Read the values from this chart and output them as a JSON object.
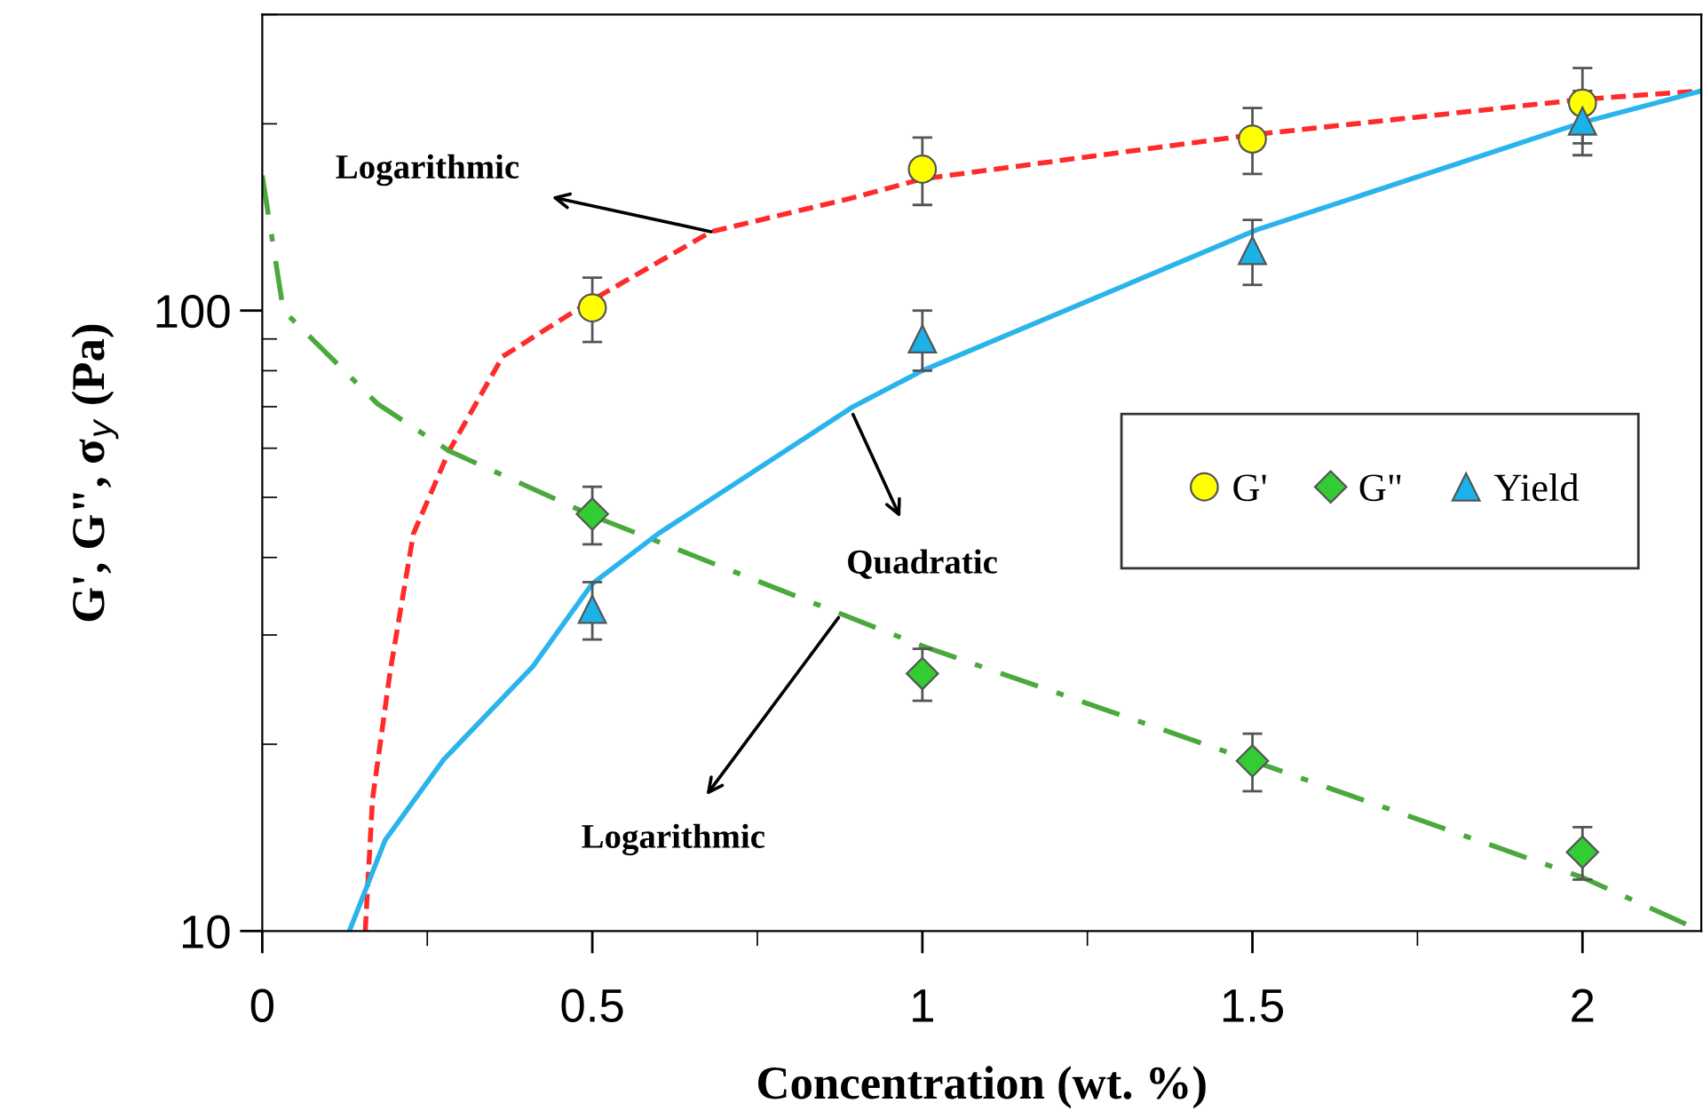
{
  "chart_data": {
    "type": "scatter",
    "xlabel": "Concentration (wt. %)",
    "ylabel": "G', G\", σ$_{y}$ (Pa)",
    "log": "y",
    "xlim": [
      0,
      2.18
    ],
    "xticks": [
      0,
      0.5,
      1,
      1.5,
      2
    ],
    "ylim": [
      10,
      300
    ],
    "yticks": [
      10,
      100
    ],
    "grid": false,
    "legend": "right",
    "series": [
      {
        "name": "G'",
        "marker": "circle",
        "color": "#ffff00",
        "x": [
          0.5,
          1,
          1.5,
          2
        ],
        "values": [
          101,
          169,
          189,
          216
        ],
        "errors": [
          12,
          21,
          23,
          30
        ]
      },
      {
        "name": "G\"",
        "marker": "diamond",
        "color": "#33cc33",
        "x": [
          0.5,
          1,
          1.5,
          2
        ],
        "values": [
          47,
          26,
          18.8,
          13.4
        ],
        "errors": [
          5,
          2.5,
          2,
          1.3
        ]
      },
      {
        "name": "Yield",
        "marker": "triangle",
        "color": "#1ab2e8",
        "x": [
          0.5,
          1,
          1.5,
          2
        ],
        "values": [
          33,
          90,
          125,
          202
        ],
        "errors": [
          3.5,
          10,
          15,
          24
        ]
      },
      {
        "type": "line",
        "line_style": "dashed",
        "color": "#ff2a2a",
        "x": [
          0.156,
          0.167,
          0.194,
          0.229,
          0.283,
          0.364,
          0.5,
          0.68,
          0.895,
          1.0,
          1.5,
          2.0,
          2.18
        ],
        "values": [
          10,
          16.3,
          26.3,
          43.7,
          59.4,
          84.3,
          104,
          134,
          152,
          163,
          192,
          219,
          226
        ]
      },
      {
        "type": "line",
        "line_style": "dashdot",
        "color": "#4aa83c",
        "x": [
          0,
          0.032,
          0.175,
          0.283,
          0.5,
          1.0,
          1.5,
          2.0,
          2.18
        ],
        "values": [
          165,
          100,
          70.7,
          59.4,
          46.7,
          28.8,
          18.8,
          12.2,
          10
        ]
      },
      {
        "type": "line",
        "line_style": "solid",
        "color": "#2ab4ec",
        "x": [
          0.132,
          0.186,
          0.275,
          0.41,
          0.5,
          0.6,
          0.895,
          1.0,
          1.507,
          2.0,
          2.18
        ],
        "values": [
          10,
          14,
          18.9,
          26.7,
          36.3,
          43.7,
          70,
          80,
          135,
          201,
          226
        ]
      }
    ],
    "annotations": [
      {
        "text": "Logarithmic",
        "x": 0.68,
        "y": 134
      },
      {
        "text": "Quadratic",
        "x": 0.895,
        "y": 68
      },
      {
        "text": "Logarithmic",
        "x": 0.873,
        "y": 32
      }
    ]
  }
}
